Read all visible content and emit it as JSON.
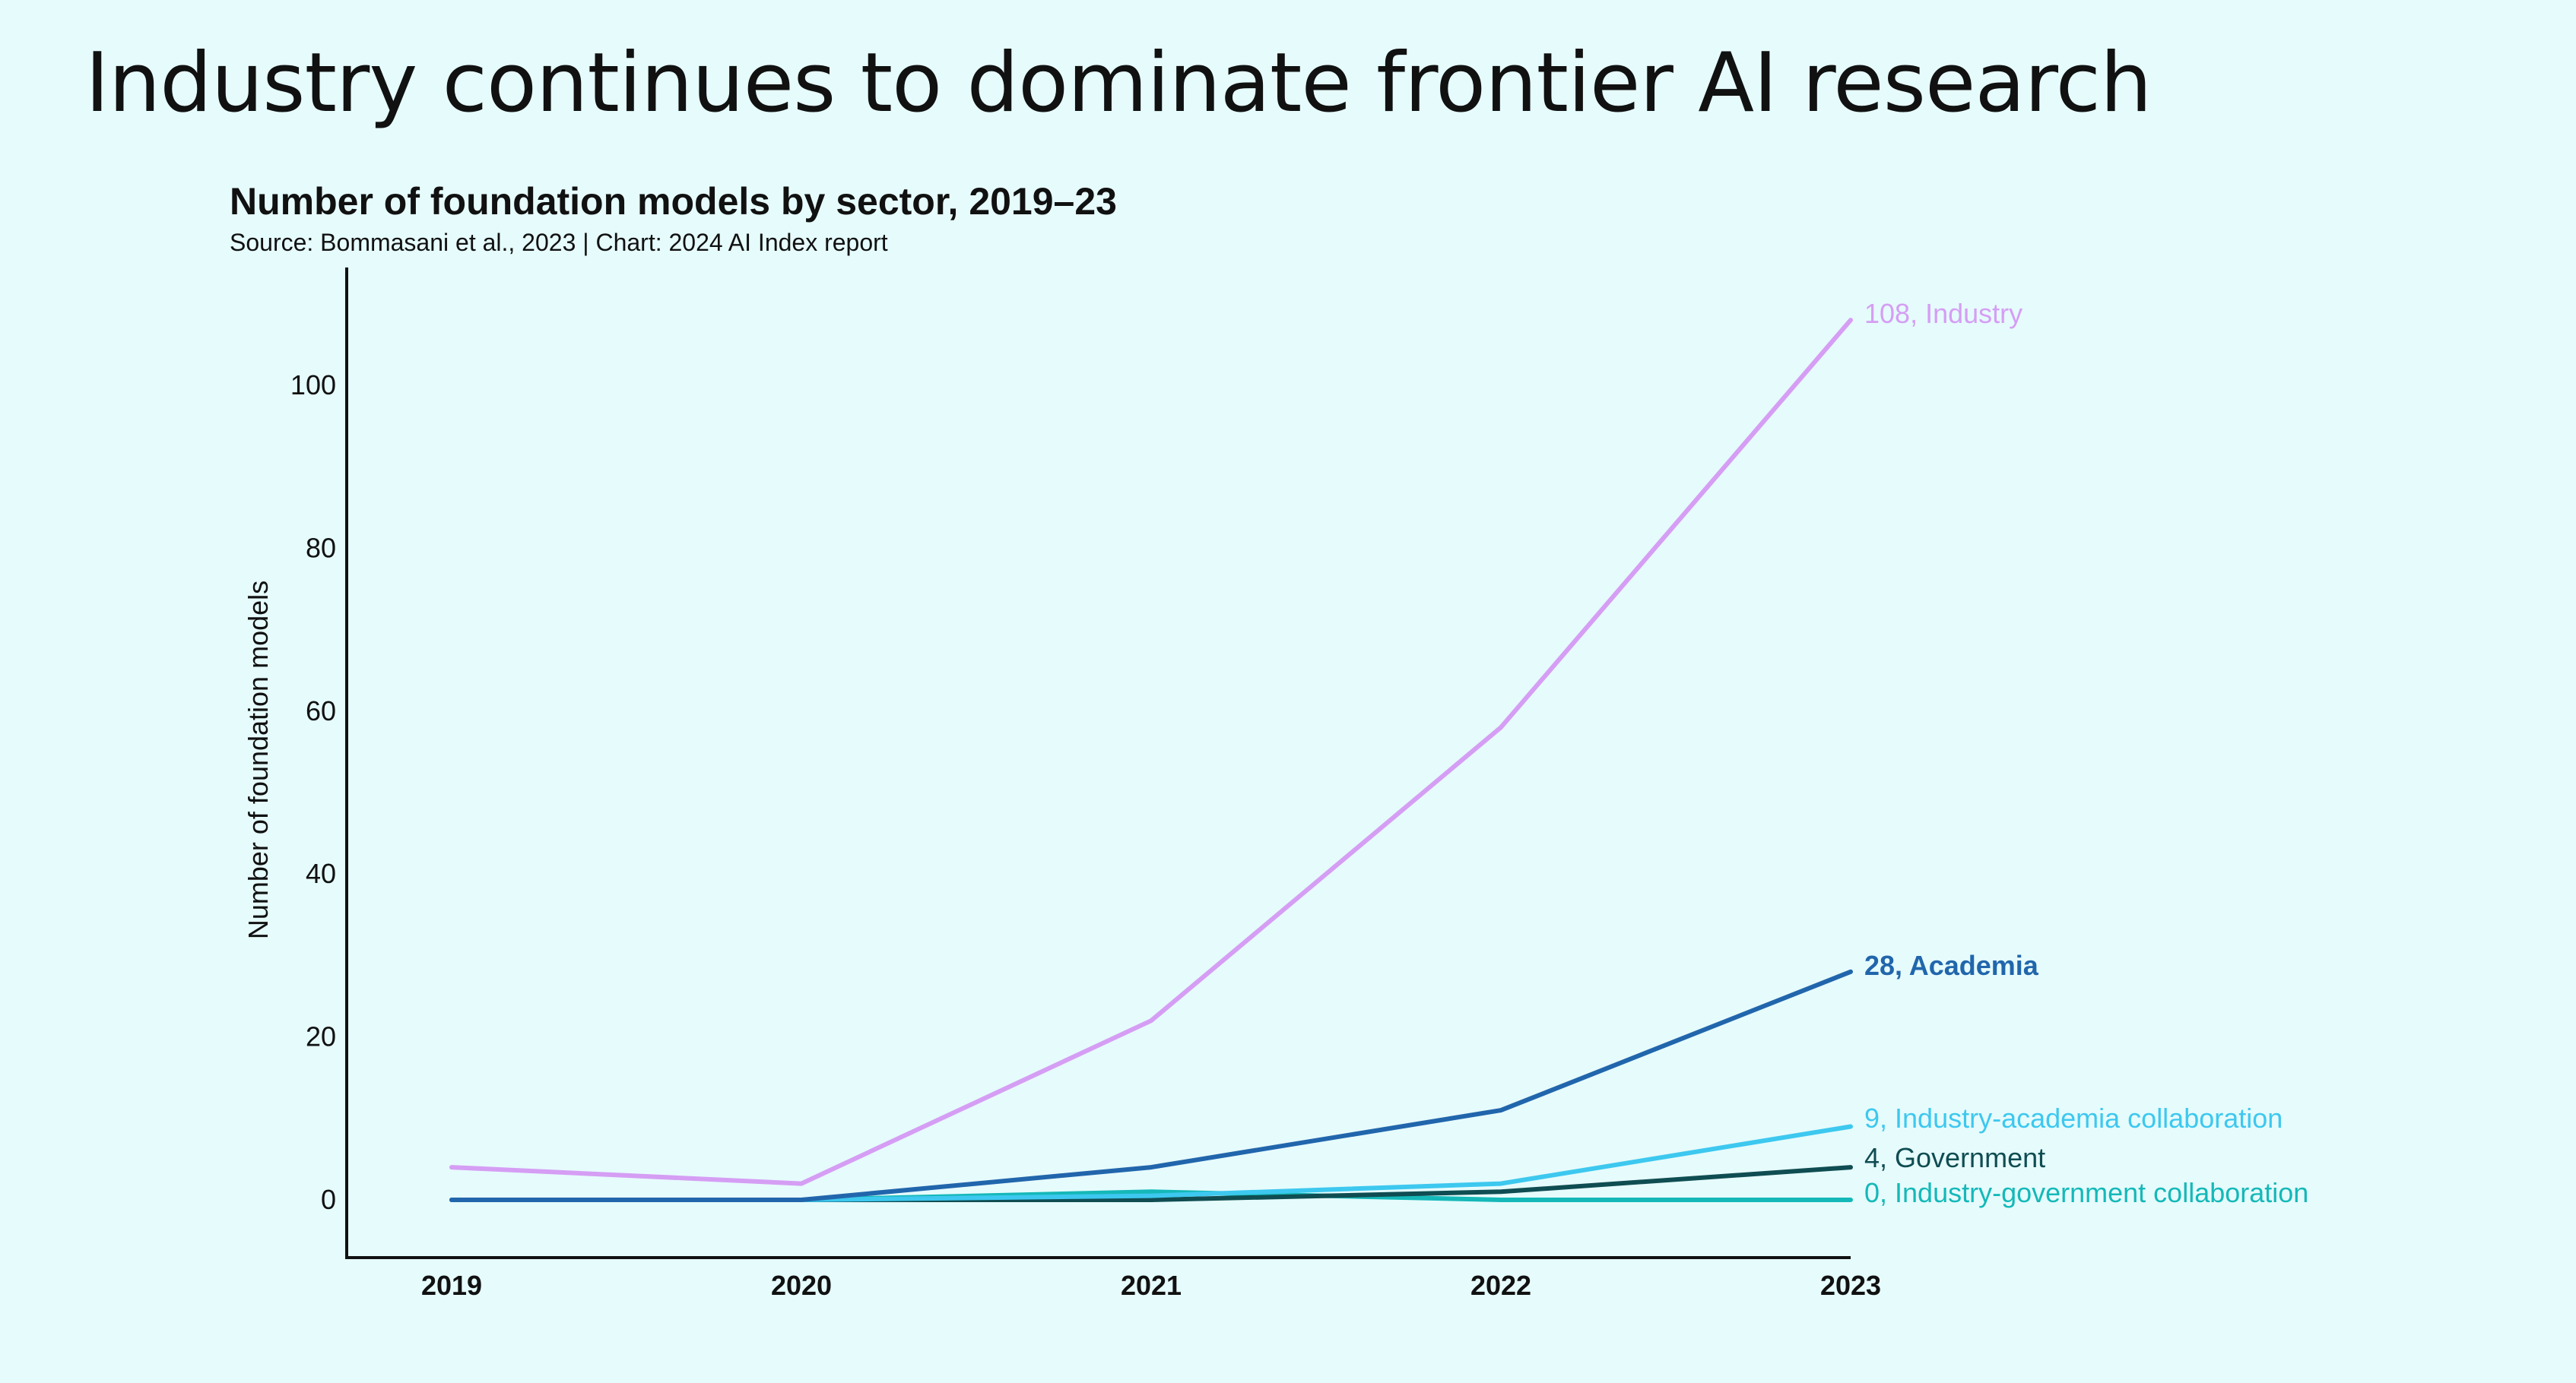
{
  "slide": {
    "title": "Industry continues to dominate frontier AI research"
  },
  "chart_data": {
    "type": "line",
    "title": "Number of foundation models by sector, 2019–23",
    "subtitle": "Source: Bommasani et al., 2023 | Chart: 2024 AI Index report",
    "xlabel": "",
    "ylabel": "Number of foundation models",
    "x": [
      "2019",
      "2020",
      "2021",
      "2022",
      "2023"
    ],
    "yticks": [
      0,
      20,
      40,
      60,
      80,
      100
    ],
    "ylim": [
      -7,
      115
    ],
    "grid": false,
    "legend": "end-of-line labels",
    "series": [
      {
        "name": "Industry",
        "end_label": "108, Industry",
        "color": "#d59ef4",
        "values": [
          4,
          2,
          22,
          58,
          108
        ]
      },
      {
        "name": "Academia",
        "end_label": "28, Academia",
        "color": "#2166ac",
        "values": [
          0,
          0,
          4,
          11,
          28
        ]
      },
      {
        "name": "Industry-academia collaboration",
        "end_label": "9, Industry-academia collaboration",
        "color": "#3dc8ef",
        "values": [
          0,
          0,
          0.5,
          2,
          9
        ]
      },
      {
        "name": "Government",
        "end_label": "4, Government",
        "color": "#0f4d52",
        "values": [
          0,
          0,
          0,
          1,
          4
        ]
      },
      {
        "name": "Industry-government collaboration",
        "end_label": "0, Industry-government collaboration",
        "color": "#15b8b8",
        "values": [
          0,
          0,
          1,
          0,
          0
        ]
      }
    ]
  }
}
